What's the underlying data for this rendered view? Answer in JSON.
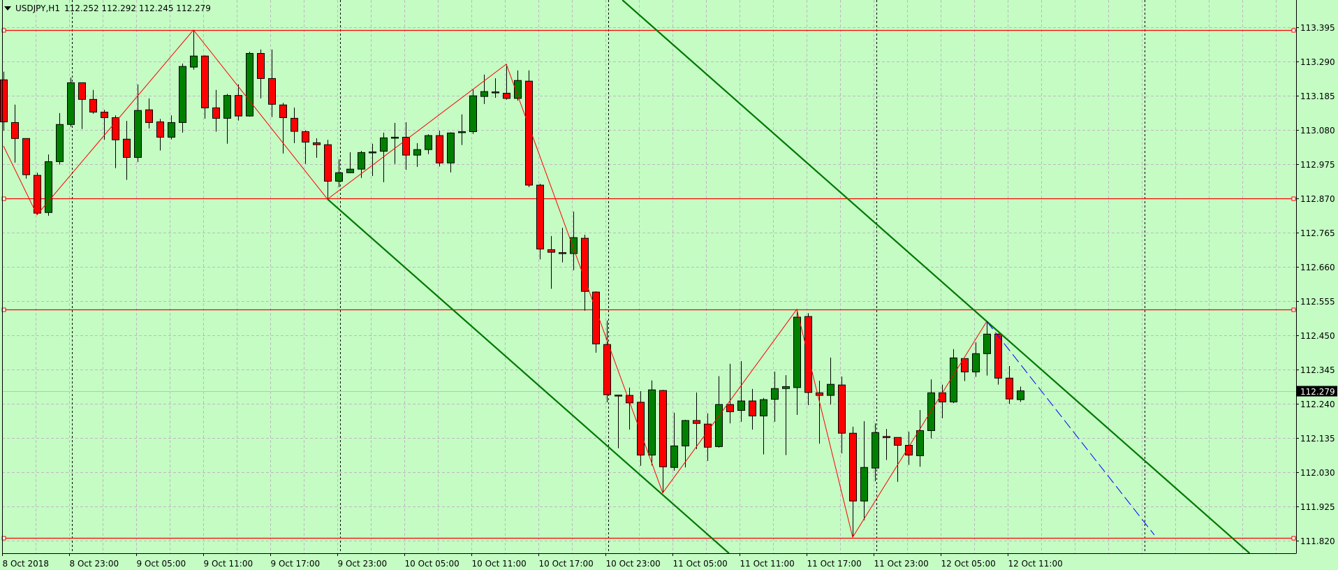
{
  "header": {
    "menu_icon": "triangle-down-icon",
    "symbol": "USDJPY,H1",
    "ohlc": "112.252 112.292 112.245 112.279"
  },
  "colors": {
    "background": "#c4fcc4",
    "bull_candle": "#008000",
    "bear_candle": "#ff0000",
    "candle_outline": "#000000",
    "grid": "#c0b8c0",
    "level_lines": "#ff0000",
    "zigzag": "#ff0000",
    "channel_lines": "#007800",
    "projection_line": "#0000ff",
    "bid_line": "#c0c0c0",
    "price_label_bg": "#000000",
    "price_label_text": "#ffffff"
  },
  "chart_data": {
    "type": "candlestick",
    "symbol": "USDJPY",
    "timeframe": "H1",
    "ylim": [
      111.781,
      113.478
    ],
    "grid": true,
    "y_ticks": [
      "113.395",
      "113.290",
      "113.185",
      "113.080",
      "112.975",
      "112.870",
      "112.765",
      "112.660",
      "112.555",
      "112.450",
      "112.345",
      "112.240",
      "112.135",
      "112.030",
      "111.925",
      "111.820"
    ],
    "x_ticks": [
      {
        "time": "2018.10.08 17:00",
        "label": "8 Oct 2018"
      },
      {
        "time": "2018.10.08 23:00",
        "label": "8 Oct 23:00"
      },
      {
        "time": "2018.10.09 05:00",
        "label": "9 Oct 05:00"
      },
      {
        "time": "2018.10.09 11:00",
        "label": "9 Oct 11:00"
      },
      {
        "time": "2018.10.09 17:00",
        "label": "9 Oct 17:00"
      },
      {
        "time": "2018.10.09 23:00",
        "label": "9 Oct 23:00"
      },
      {
        "time": "2018.10.10 05:00",
        "label": "10 Oct 05:00"
      },
      {
        "time": "2018.10.10 11:00",
        "label": "10 Oct 11:00"
      },
      {
        "time": "2018.10.10 17:00",
        "label": "10 Oct 17:00"
      },
      {
        "time": "2018.10.10 23:00",
        "label": "10 Oct 23:00"
      },
      {
        "time": "2018.10.11 05:00",
        "label": "11 Oct 05:00"
      },
      {
        "time": "2018.10.11 11:00",
        "label": "11 Oct 11:00"
      },
      {
        "time": "2018.10.11 17:00",
        "label": "11 Oct 17:00"
      },
      {
        "time": "2018.10.11 23:00",
        "label": "11 Oct 23:00"
      },
      {
        "time": "2018.10.12 05:00",
        "label": "12 Oct 05:00"
      },
      {
        "time": "2018.10.12 11:00",
        "label": "12 Oct 11:00"
      }
    ],
    "current_price": "112.279",
    "candle_fields": [
      "time",
      "open",
      "high",
      "low",
      "close"
    ],
    "candles": [
      [
        "2018.10.08 17:00",
        113.233,
        113.258,
        113.077,
        113.104
      ],
      [
        "2018.10.08 18:00",
        113.102,
        113.157,
        112.979,
        113.053
      ],
      [
        "2018.10.08 19:00",
        113.053,
        113.053,
        112.93,
        112.942
      ],
      [
        "2018.10.08 20:00",
        112.94,
        112.948,
        112.819,
        112.824
      ],
      [
        "2018.10.08 21:00",
        112.826,
        113.004,
        112.816,
        112.982
      ],
      [
        "2018.10.08 22:00",
        112.982,
        113.131,
        112.973,
        113.096
      ],
      [
        "2018.10.08 23:00",
        113.096,
        113.24,
        113.089,
        113.224
      ],
      [
        "2018.10.09 00:00",
        113.224,
        113.224,
        113.082,
        113.173
      ],
      [
        "2018.10.09 01:00",
        113.173,
        113.202,
        113.129,
        113.134
      ],
      [
        "2018.10.09 02:00",
        113.134,
        113.141,
        113.049,
        113.117
      ],
      [
        "2018.10.09 03:00",
        113.117,
        113.124,
        112.962,
        113.049
      ],
      [
        "2018.10.09 04:00",
        113.051,
        113.107,
        112.926,
        112.995
      ],
      [
        "2018.10.09 05:00",
        112.995,
        113.219,
        112.981,
        113.139
      ],
      [
        "2018.10.09 06:00",
        113.141,
        113.176,
        113.084,
        113.102
      ],
      [
        "2018.10.09 07:00",
        113.104,
        113.113,
        113.016,
        113.057
      ],
      [
        "2018.10.09 08:00",
        113.057,
        113.124,
        113.05,
        113.102
      ],
      [
        "2018.10.09 09:00",
        113.102,
        113.283,
        113.071,
        113.274
      ],
      [
        "2018.10.09 10:00",
        113.272,
        113.386,
        113.264,
        113.306
      ],
      [
        "2018.10.09 11:00",
        113.306,
        113.308,
        113.114,
        113.147
      ],
      [
        "2018.10.09 12:00",
        113.147,
        113.202,
        113.074,
        113.115
      ],
      [
        "2018.10.09 13:00",
        113.115,
        113.19,
        113.037,
        113.185
      ],
      [
        "2018.10.09 14:00",
        113.185,
        113.219,
        113.108,
        113.122
      ],
      [
        "2018.10.09 15:00",
        113.122,
        113.319,
        113.12,
        113.314
      ],
      [
        "2018.10.09 16:00",
        113.314,
        113.326,
        113.176,
        113.237
      ],
      [
        "2018.10.09 17:00",
        113.237,
        113.326,
        113.119,
        113.158
      ],
      [
        "2018.10.09 18:00",
        113.156,
        113.162,
        113.007,
        113.117
      ],
      [
        "2018.10.09 19:00",
        113.115,
        113.148,
        113.039,
        113.075
      ],
      [
        "2018.10.09 20:00",
        113.074,
        113.078,
        112.975,
        113.042
      ],
      [
        "2018.10.09 21:00",
        113.04,
        113.054,
        112.994,
        113.034
      ],
      [
        "2018.10.09 22:00",
        113.034,
        113.049,
        112.867,
        112.922
      ],
      [
        "2018.10.09 23:00",
        112.922,
        112.989,
        112.904,
        112.948
      ],
      [
        "2018.10.10 00:00",
        112.948,
        113.011,
        112.947,
        112.959
      ],
      [
        "2018.10.10 01:00",
        112.959,
        113.015,
        112.932,
        113.01
      ],
      [
        "2018.10.10 02:00",
        113.011,
        113.037,
        112.938,
        113.012
      ],
      [
        "2018.10.10 03:00",
        113.014,
        113.071,
        112.919,
        113.055
      ],
      [
        "2018.10.10 04:00",
        113.056,
        113.101,
        112.975,
        113.057
      ],
      [
        "2018.10.10 05:00",
        113.057,
        113.103,
        112.957,
        113.002
      ],
      [
        "2018.10.10 06:00",
        113.002,
        113.039,
        112.966,
        113.019
      ],
      [
        "2018.10.10 07:00",
        113.019,
        113.066,
        113.005,
        113.062
      ],
      [
        "2018.10.10 08:00",
        113.062,
        113.077,
        112.967,
        112.978
      ],
      [
        "2018.10.10 09:00",
        112.978,
        113.072,
        112.949,
        113.07
      ],
      [
        "2018.10.10 10:00",
        113.071,
        113.127,
        113.033,
        113.074
      ],
      [
        "2018.10.10 11:00",
        113.074,
        113.203,
        113.067,
        113.184
      ],
      [
        "2018.10.10 12:00",
        113.182,
        113.249,
        113.159,
        113.197
      ],
      [
        "2018.10.10 13:00",
        113.195,
        113.238,
        113.178,
        113.196
      ],
      [
        "2018.10.10 14:00",
        113.192,
        113.281,
        113.172,
        113.176
      ],
      [
        "2018.10.10 15:00",
        113.176,
        113.262,
        113.169,
        113.231
      ],
      [
        "2018.10.10 16:00",
        113.229,
        113.262,
        112.904,
        112.91
      ],
      [
        "2018.10.10 17:00",
        112.91,
        112.914,
        112.682,
        112.714
      ],
      [
        "2018.10.10 18:00",
        112.712,
        112.754,
        112.592,
        112.704
      ],
      [
        "2018.10.10 19:00",
        112.703,
        112.779,
        112.673,
        112.702
      ],
      [
        "2018.10.10 20:00",
        112.7,
        112.829,
        112.649,
        112.749
      ],
      [
        "2018.10.10 21:00",
        112.747,
        112.758,
        112.525,
        112.584
      ],
      [
        "2018.10.10 22:00",
        112.582,
        112.584,
        112.396,
        112.423
      ],
      [
        "2018.10.10 23:00",
        112.421,
        112.495,
        112.244,
        112.267
      ],
      [
        "2018.10.11 00:00",
        112.266,
        112.267,
        112.103,
        112.265
      ],
      [
        "2018.10.11 01:00",
        112.265,
        112.289,
        112.16,
        112.242
      ],
      [
        "2018.10.11 02:00",
        112.244,
        112.278,
        112.049,
        112.082
      ],
      [
        "2018.10.11 03:00",
        112.082,
        112.311,
        112.05,
        112.282
      ],
      [
        "2018.10.11 04:00",
        112.28,
        112.282,
        111.966,
        112.046
      ],
      [
        "2018.10.11 05:00",
        112.044,
        112.212,
        112.034,
        112.11
      ],
      [
        "2018.10.11 06:00",
        112.11,
        112.19,
        112.044,
        112.188
      ],
      [
        "2018.10.11 07:00",
        112.188,
        112.274,
        112.1,
        112.179
      ],
      [
        "2018.10.11 08:00",
        112.177,
        112.21,
        112.064,
        112.106
      ],
      [
        "2018.10.11 09:00",
        112.108,
        112.324,
        112.105,
        112.237
      ],
      [
        "2018.10.11 10:00",
        112.237,
        112.362,
        112.179,
        112.215
      ],
      [
        "2018.10.11 11:00",
        112.219,
        112.37,
        112.184,
        112.248
      ],
      [
        "2018.10.11 12:00",
        112.248,
        112.285,
        112.16,
        112.202
      ],
      [
        "2018.10.11 13:00",
        112.202,
        112.257,
        112.084,
        112.252
      ],
      [
        "2018.10.11 14:00",
        112.253,
        112.338,
        112.184,
        112.286
      ],
      [
        "2018.10.11 15:00",
        112.286,
        112.327,
        112.082,
        112.292
      ],
      [
        "2018.10.11 16:00",
        112.289,
        112.529,
        112.205,
        112.505
      ],
      [
        "2018.10.11 17:00",
        112.507,
        112.517,
        112.235,
        112.274
      ],
      [
        "2018.10.11 18:00",
        112.273,
        112.31,
        112.117,
        112.265
      ],
      [
        "2018.10.11 19:00",
        112.265,
        112.381,
        112.237,
        112.299
      ],
      [
        "2018.10.11 20:00",
        112.297,
        112.323,
        112.087,
        112.149
      ],
      [
        "2018.10.11 21:00",
        112.149,
        112.169,
        111.83,
        111.941
      ],
      [
        "2018.10.11 22:00",
        111.941,
        112.186,
        111.882,
        112.044
      ],
      [
        "2018.10.11 23:00",
        112.042,
        112.179,
        112.002,
        112.151
      ],
      [
        "2018.10.12 00:00",
        112.139,
        112.162,
        112.067,
        112.136
      ],
      [
        "2018.10.12 01:00",
        112.136,
        112.136,
        112.0,
        112.112
      ],
      [
        "2018.10.12 02:00",
        112.112,
        112.154,
        112.052,
        112.082
      ],
      [
        "2018.10.12 03:00",
        112.08,
        112.22,
        112.046,
        112.157
      ],
      [
        "2018.10.12 04:00",
        112.157,
        112.314,
        112.133,
        112.273
      ],
      [
        "2018.10.12 05:00",
        112.273,
        112.298,
        112.195,
        112.245
      ],
      [
        "2018.10.12 06:00",
        112.245,
        112.407,
        112.241,
        112.38
      ],
      [
        "2018.10.12 07:00",
        112.378,
        112.378,
        112.309,
        112.337
      ],
      [
        "2018.10.12 08:00",
        112.337,
        112.428,
        112.322,
        112.393
      ],
      [
        "2018.10.12 09:00",
        112.393,
        112.492,
        112.326,
        112.453
      ],
      [
        "2018.10.12 10:00",
        112.453,
        112.455,
        112.298,
        112.318
      ],
      [
        "2018.10.12 11:00",
        112.318,
        112.355,
        112.239,
        112.254
      ],
      [
        "2018.10.12 12:00",
        112.252,
        112.292,
        112.245,
        112.279
      ]
    ],
    "horizontal_levels": [
      113.385,
      112.869,
      112.528,
      111.829
    ],
    "period_separators": [
      "2018.10.09 00:00",
      "2018.10.10 00:00",
      "2018.10.11 00:00",
      "2018.10.12 00:00",
      "2018.10.13 00:00"
    ],
    "zigzag": [
      [
        "2018.10.08 17:00",
        113.03
      ],
      [
        "2018.10.08 20:00",
        112.819
      ],
      [
        "2018.10.09 10:00",
        113.386
      ],
      [
        "2018.10.09 22:00",
        112.867
      ],
      [
        "2018.10.10 14:00",
        113.281
      ],
      [
        "2018.10.11 04:00",
        111.966
      ],
      [
        "2018.10.11 16:00",
        112.529
      ],
      [
        "2018.10.11 21:00",
        111.83
      ],
      [
        "2018.10.12 09:00",
        112.492
      ]
    ],
    "channel_lines": [
      {
        "p1": [
          "2018.10.10 14:00",
          113.792
        ],
        "p2": [
          "2018.10.12 09:00",
          112.492
        ],
        "ray": true
      },
      {
        "p1": [
          "2018.10.09 22:00",
          112.867
        ],
        "p2": [
          "2018.10.11 04:00",
          111.96
        ],
        "ray": true
      }
    ],
    "projection_line": {
      "p1": [
        "2018.10.12 09:00",
        112.492
      ],
      "p2": [
        "2018.10.13 00:00",
        111.837
      ],
      "style": "dashed"
    }
  }
}
